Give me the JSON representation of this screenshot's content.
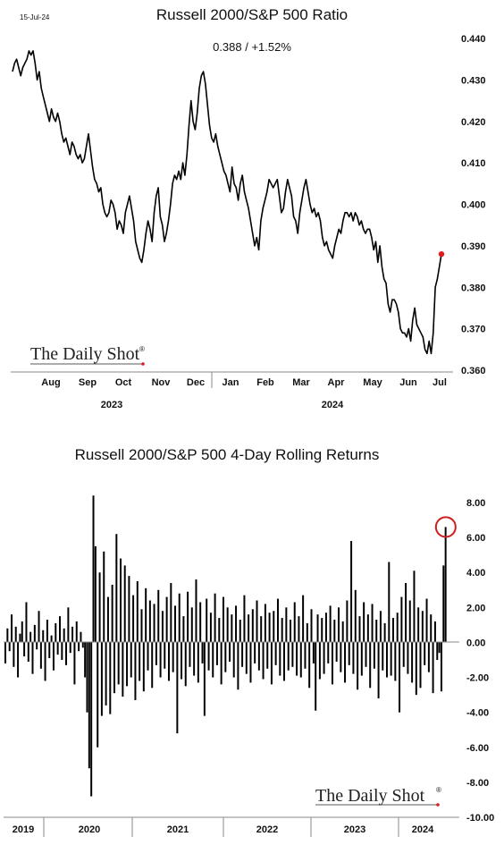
{
  "date_stamp": "15-Jul-24",
  "logo_text": "The Daily Shot",
  "logo_mark": "®",
  "colors": {
    "line": "#000000",
    "marker": "#e01b1b",
    "axis": "#888888"
  },
  "chart_data": [
    {
      "type": "line",
      "title": "Russell 2000/S&P 500 Ratio",
      "subtitle": "0.388  /  +1.52%",
      "ylim": [
        0.36,
        0.44
      ],
      "y_ticks": [
        "0.440",
        "0.430",
        "0.420",
        "0.410",
        "0.400",
        "0.390",
        "0.380",
        "0.370",
        "0.360"
      ],
      "x_tick_labels": [
        "Aug",
        "Sep",
        "Oct",
        "Nov",
        "Dec",
        "Jan",
        "Feb",
        "Mar",
        "Apr",
        "May",
        "Jun",
        "Jul"
      ],
      "year_labels": [
        "2023",
        "2024"
      ],
      "last_value": 0.388,
      "series": [
        {
          "values": [
            0.432,
            0.434,
            0.435,
            0.433,
            0.431,
            0.433,
            0.434,
            0.435,
            0.437,
            0.436,
            0.437,
            0.434,
            0.43,
            0.432,
            0.428,
            0.426,
            0.424,
            0.422,
            0.42,
            0.423,
            0.421,
            0.42,
            0.422,
            0.42,
            0.417,
            0.415,
            0.416,
            0.414,
            0.412,
            0.415,
            0.414,
            0.412,
            0.411,
            0.412,
            0.41,
            0.411,
            0.414,
            0.417,
            0.413,
            0.409,
            0.406,
            0.405,
            0.403,
            0.404,
            0.4,
            0.398,
            0.397,
            0.398,
            0.401,
            0.4,
            0.398,
            0.394,
            0.396,
            0.395,
            0.393,
            0.398,
            0.4,
            0.402,
            0.399,
            0.396,
            0.391,
            0.389,
            0.387,
            0.386,
            0.389,
            0.393,
            0.396,
            0.394,
            0.391,
            0.398,
            0.402,
            0.404,
            0.397,
            0.395,
            0.391,
            0.393,
            0.396,
            0.4,
            0.405,
            0.407,
            0.406,
            0.408,
            0.406,
            0.41,
            0.407,
            0.412,
            0.419,
            0.425,
            0.42,
            0.418,
            0.422,
            0.428,
            0.431,
            0.432,
            0.429,
            0.424,
            0.419,
            0.416,
            0.415,
            0.417,
            0.414,
            0.412,
            0.41,
            0.408,
            0.407,
            0.405,
            0.403,
            0.409,
            0.405,
            0.404,
            0.401,
            0.405,
            0.407,
            0.403,
            0.401,
            0.399,
            0.396,
            0.393,
            0.39,
            0.392,
            0.389,
            0.396,
            0.399,
            0.401,
            0.403,
            0.406,
            0.405,
            0.404,
            0.405,
            0.406,
            0.402,
            0.398,
            0.399,
            0.403,
            0.406,
            0.404,
            0.402,
            0.397,
            0.396,
            0.393,
            0.398,
            0.401,
            0.404,
            0.406,
            0.403,
            0.4,
            0.398,
            0.399,
            0.397,
            0.398,
            0.396,
            0.392,
            0.39,
            0.391,
            0.389,
            0.388,
            0.387,
            0.39,
            0.392,
            0.394,
            0.393,
            0.396,
            0.398,
            0.398,
            0.397,
            0.398,
            0.396,
            0.398,
            0.397,
            0.395,
            0.396,
            0.394,
            0.393,
            0.394,
            0.394,
            0.392,
            0.389,
            0.391,
            0.386,
            0.39,
            0.385,
            0.382,
            0.381,
            0.376,
            0.374,
            0.377,
            0.377,
            0.376,
            0.374,
            0.37,
            0.369,
            0.369,
            0.368,
            0.37,
            0.367,
            0.372,
            0.375,
            0.371,
            0.37,
            0.369,
            0.368,
            0.365,
            0.364,
            0.367,
            0.364,
            0.369,
            0.38,
            0.382,
            0.385,
            0.388
          ]
        }
      ]
    },
    {
      "type": "bar",
      "title": "Russell 2000/S&P 500 4-Day Rolling Returns",
      "ylim": [
        -10,
        8
      ],
      "y_ticks": [
        "8.00",
        "6.00",
        "4.00",
        "2.00",
        "0.00",
        "-2.00",
        "-4.00",
        "-6.00",
        "-8.00",
        "-10.00"
      ],
      "x_tick_labels": [
        "2019",
        "2020",
        "2021",
        "2022",
        "2023",
        "2024"
      ],
      "last_value": 6.6,
      "series": [
        {
          "values": [
            -1.2,
            0.8,
            -0.5,
            1.6,
            -1.4,
            0.9,
            -2.0,
            0.5,
            1.2,
            -0.8,
            2.3,
            -1.1,
            0.6,
            -1.8,
            1.0,
            -0.4,
            1.8,
            -1.5,
            0.7,
            -2.2,
            1.3,
            -0.9,
            0.4,
            -1.6,
            1.1,
            -0.7,
            1.5,
            -1.0,
            0.8,
            -1.3,
            2.0,
            -0.6,
            0.9,
            -2.4,
            1.2,
            -0.5,
            0.6,
            -0.3,
            -2.0,
            -4.0,
            -7.2,
            -8.8,
            8.4,
            5.5,
            -6.0,
            4.0,
            -4.2,
            5.2,
            -3.6,
            2.6,
            -4.1,
            3.3,
            -2.9,
            6.2,
            -2.4,
            4.8,
            -3.1,
            4.4,
            -2.5,
            3.8,
            -2.0,
            2.7,
            -3.3,
            3.5,
            -2.2,
            1.9,
            -2.8,
            3.1,
            -1.6,
            2.4,
            -2.6,
            2.2,
            -1.3,
            3.0,
            -2.0,
            1.8,
            -1.5,
            2.6,
            -2.2,
            3.4,
            -1.7,
            2.1,
            -5.2,
            2.8,
            -2.1,
            1.5,
            -2.5,
            2.9,
            -1.4,
            2.0,
            -1.9,
            3.6,
            -2.3,
            2.3,
            -1.2,
            -4.2,
            2.5,
            -1.6,
            1.7,
            -2.0,
            2.8,
            -1.3,
            1.4,
            -2.4,
            2.6,
            -1.7,
            2.0,
            -1.1,
            1.6,
            -2.0,
            2.1,
            -2.7,
            1.3,
            -1.4,
            2.7,
            -1.8,
            1.6,
            -2.3,
            1.9,
            -1.2,
            2.4,
            -1.6,
            1.5,
            -2.1,
            2.2,
            -1.5,
            1.7,
            -2.4,
            1.8,
            -1.3,
            2.5,
            -1.9,
            1.4,
            -2.2,
            2.0,
            -1.6,
            1.3,
            -1.4,
            2.3,
            -1.9,
            1.5,
            -2.0,
            2.7,
            -1.5,
            1.1,
            -2.6,
            1.9,
            -1.2,
            -3.9,
            1.6,
            -2.1,
            1.4,
            -1.8,
            1.7,
            -1.2,
            2.1,
            -2.4,
            1.3,
            -1.1,
            2.0,
            -1.7,
            1.2,
            -2.3,
            2.4,
            -1.3,
            5.8,
            -1.8,
            3.0,
            -2.7,
            1.5,
            -1.9,
            2.3,
            -1.4,
            1.6,
            -2.6,
            2.2,
            -1.5,
            1.3,
            -3.2,
            1.8,
            -1.6,
            1.1,
            -2.0,
            4.6,
            -1.9,
            1.4,
            -2.2,
            1.7,
            -4.0,
            2.6,
            -1.4,
            3.4,
            -1.8,
            2.4,
            -2.3,
            4.1,
            -3.0,
            2.0,
            -2.6,
            1.8,
            -1.3,
            2.5,
            -1.7,
            1.6,
            -2.9,
            1.2,
            -1.0,
            -0.6,
            -2.8,
            4.4,
            6.6
          ]
        }
      ]
    }
  ]
}
